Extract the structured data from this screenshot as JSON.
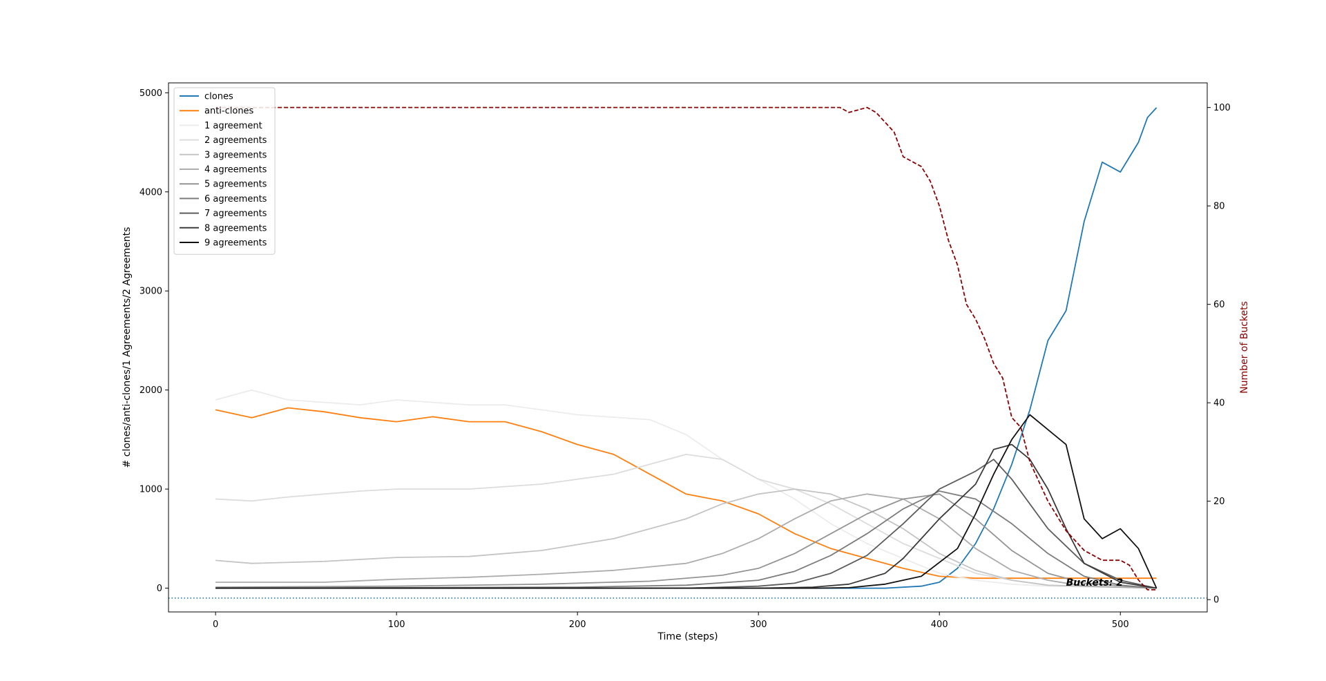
{
  "chart_data": {
    "type": "line",
    "xlabel": "Time (steps)",
    "ylabel": "# clones/anti-clones/1 Agreements/2 Agreements",
    "y2label": "Number of Buckets",
    "xlim": [
      -26,
      548
    ],
    "ylim": [
      -240,
      5100
    ],
    "y2lim": [
      -2.5,
      105
    ],
    "xticks": [
      0,
      100,
      200,
      300,
      400,
      500
    ],
    "yticks": [
      0,
      1000,
      2000,
      3000,
      4000,
      5000
    ],
    "y2ticks": [
      0,
      20,
      40,
      60,
      80,
      100
    ],
    "legend_position": "top-left",
    "grid": false,
    "annotation": {
      "text": "Buckets: 2",
      "x": 470,
      "y": 25
    },
    "baseline": {
      "y": -100,
      "style": "dotted",
      "color": "#1f77b4"
    },
    "series": [
      {
        "name": "clones",
        "color": "#1f77b4",
        "style": "solid",
        "axis": "left",
        "points": [
          [
            0,
            0
          ],
          [
            370,
            0
          ],
          [
            390,
            20
          ],
          [
            400,
            60
          ],
          [
            410,
            200
          ],
          [
            420,
            450
          ],
          [
            430,
            800
          ],
          [
            440,
            1250
          ],
          [
            450,
            1800
          ],
          [
            460,
            2500
          ],
          [
            470,
            2800
          ],
          [
            480,
            3700
          ],
          [
            490,
            4300
          ],
          [
            500,
            4200
          ],
          [
            510,
            4500
          ],
          [
            515,
            4750
          ],
          [
            520,
            4850
          ]
        ]
      },
      {
        "name": "anti-clones",
        "color": "#ff7f0e",
        "style": "solid",
        "axis": "left",
        "points": [
          [
            0,
            1800
          ],
          [
            20,
            1720
          ],
          [
            40,
            1820
          ],
          [
            60,
            1780
          ],
          [
            80,
            1720
          ],
          [
            100,
            1680
          ],
          [
            120,
            1730
          ],
          [
            140,
            1680
          ],
          [
            160,
            1680
          ],
          [
            180,
            1580
          ],
          [
            200,
            1450
          ],
          [
            220,
            1350
          ],
          [
            240,
            1150
          ],
          [
            260,
            950
          ],
          [
            280,
            880
          ],
          [
            300,
            750
          ],
          [
            320,
            550
          ],
          [
            340,
            400
          ],
          [
            360,
            300
          ],
          [
            380,
            200
          ],
          [
            400,
            120
          ],
          [
            420,
            100
          ],
          [
            520,
            100
          ]
        ]
      },
      {
        "name": "1 agreement",
        "color": "#ececec",
        "style": "solid",
        "axis": "left",
        "points": [
          [
            0,
            1900
          ],
          [
            20,
            2000
          ],
          [
            40,
            1900
          ],
          [
            80,
            1850
          ],
          [
            100,
            1900
          ],
          [
            140,
            1850
          ],
          [
            160,
            1850
          ],
          [
            200,
            1750
          ],
          [
            240,
            1700
          ],
          [
            260,
            1550
          ],
          [
            280,
            1300
          ],
          [
            300,
            1100
          ],
          [
            320,
            900
          ],
          [
            340,
            650
          ],
          [
            360,
            450
          ],
          [
            380,
            300
          ],
          [
            400,
            150
          ],
          [
            420,
            80
          ],
          [
            440,
            40
          ],
          [
            460,
            20
          ],
          [
            520,
            0
          ]
        ]
      },
      {
        "name": "2 agreements",
        "color": "#dcdcdc",
        "style": "solid",
        "axis": "left",
        "points": [
          [
            0,
            900
          ],
          [
            20,
            880
          ],
          [
            40,
            920
          ],
          [
            80,
            980
          ],
          [
            100,
            1000
          ],
          [
            140,
            1000
          ],
          [
            180,
            1050
          ],
          [
            220,
            1150
          ],
          [
            260,
            1350
          ],
          [
            280,
            1300
          ],
          [
            300,
            1100
          ],
          [
            320,
            1000
          ],
          [
            340,
            850
          ],
          [
            360,
            650
          ],
          [
            380,
            450
          ],
          [
            400,
            300
          ],
          [
            420,
            150
          ],
          [
            440,
            80
          ],
          [
            460,
            30
          ],
          [
            520,
            0
          ]
        ]
      },
      {
        "name": "3 agreements",
        "color": "#c4c4c4",
        "style": "solid",
        "axis": "left",
        "points": [
          [
            0,
            280
          ],
          [
            20,
            250
          ],
          [
            60,
            270
          ],
          [
            100,
            310
          ],
          [
            140,
            320
          ],
          [
            180,
            380
          ],
          [
            220,
            500
          ],
          [
            260,
            700
          ],
          [
            280,
            850
          ],
          [
            300,
            950
          ],
          [
            320,
            1000
          ],
          [
            340,
            950
          ],
          [
            360,
            800
          ],
          [
            380,
            600
          ],
          [
            400,
            350
          ],
          [
            420,
            180
          ],
          [
            440,
            80
          ],
          [
            460,
            30
          ],
          [
            520,
            0
          ]
        ]
      },
      {
        "name": "4 agreements",
        "color": "#acacac",
        "style": "solid",
        "axis": "left",
        "points": [
          [
            0,
            60
          ],
          [
            60,
            60
          ],
          [
            100,
            90
          ],
          [
            140,
            110
          ],
          [
            180,
            140
          ],
          [
            220,
            180
          ],
          [
            260,
            250
          ],
          [
            280,
            350
          ],
          [
            300,
            500
          ],
          [
            320,
            700
          ],
          [
            340,
            880
          ],
          [
            360,
            950
          ],
          [
            380,
            900
          ],
          [
            400,
            700
          ],
          [
            420,
            400
          ],
          [
            440,
            180
          ],
          [
            460,
            80
          ],
          [
            480,
            20
          ],
          [
            520,
            0
          ]
        ]
      },
      {
        "name": "5 agreements",
        "color": "#949494",
        "style": "solid",
        "axis": "left",
        "points": [
          [
            0,
            10
          ],
          [
            100,
            20
          ],
          [
            180,
            40
          ],
          [
            240,
            70
          ],
          [
            280,
            130
          ],
          [
            300,
            200
          ],
          [
            320,
            350
          ],
          [
            340,
            550
          ],
          [
            360,
            750
          ],
          [
            380,
            900
          ],
          [
            400,
            950
          ],
          [
            420,
            700
          ],
          [
            440,
            380
          ],
          [
            460,
            150
          ],
          [
            480,
            50
          ],
          [
            520,
            0
          ]
        ]
      },
      {
        "name": "6 agreements",
        "color": "#7c7c7c",
        "style": "solid",
        "axis": "left",
        "points": [
          [
            0,
            0
          ],
          [
            200,
            10
          ],
          [
            260,
            30
          ],
          [
            300,
            80
          ],
          [
            320,
            170
          ],
          [
            340,
            330
          ],
          [
            360,
            550
          ],
          [
            380,
            800
          ],
          [
            400,
            980
          ],
          [
            420,
            900
          ],
          [
            440,
            650
          ],
          [
            460,
            350
          ],
          [
            480,
            120
          ],
          [
            500,
            30
          ],
          [
            520,
            0
          ]
        ]
      },
      {
        "name": "7 agreements",
        "color": "#5c5c5c",
        "style": "solid",
        "axis": "left",
        "points": [
          [
            0,
            0
          ],
          [
            260,
            0
          ],
          [
            300,
            20
          ],
          [
            320,
            50
          ],
          [
            340,
            150
          ],
          [
            360,
            330
          ],
          [
            380,
            650
          ],
          [
            400,
            1000
          ],
          [
            420,
            1180
          ],
          [
            430,
            1300
          ],
          [
            440,
            1100
          ],
          [
            460,
            600
          ],
          [
            480,
            250
          ],
          [
            500,
            80
          ],
          [
            520,
            0
          ]
        ]
      },
      {
        "name": "8 agreements",
        "color": "#3a3a3a",
        "style": "solid",
        "axis": "left",
        "points": [
          [
            0,
            0
          ],
          [
            300,
            0
          ],
          [
            330,
            10
          ],
          [
            350,
            40
          ],
          [
            370,
            150
          ],
          [
            380,
            300
          ],
          [
            400,
            700
          ],
          [
            420,
            1050
          ],
          [
            430,
            1400
          ],
          [
            440,
            1450
          ],
          [
            450,
            1300
          ],
          [
            460,
            1000
          ],
          [
            470,
            600
          ],
          [
            480,
            250
          ],
          [
            500,
            60
          ],
          [
            520,
            0
          ]
        ]
      },
      {
        "name": "9 agreements",
        "color": "#111111",
        "style": "solid",
        "axis": "left",
        "points": [
          [
            0,
            0
          ],
          [
            330,
            0
          ],
          [
            350,
            5
          ],
          [
            370,
            40
          ],
          [
            390,
            120
          ],
          [
            410,
            400
          ],
          [
            420,
            750
          ],
          [
            430,
            1150
          ],
          [
            440,
            1500
          ],
          [
            450,
            1750
          ],
          [
            460,
            1600
          ],
          [
            470,
            1450
          ],
          [
            480,
            700
          ],
          [
            490,
            500
          ],
          [
            500,
            600
          ],
          [
            510,
            400
          ],
          [
            520,
            0
          ]
        ]
      },
      {
        "name": "",
        "color": "#8b0000",
        "style": "dashed",
        "axis": "right",
        "points": [
          [
            0,
            100
          ],
          [
            345,
            100
          ],
          [
            350,
            99
          ],
          [
            360,
            100
          ],
          [
            365,
            99
          ],
          [
            370,
            97
          ],
          [
            375,
            95
          ],
          [
            380,
            90
          ],
          [
            390,
            88
          ],
          [
            395,
            85
          ],
          [
            400,
            80
          ],
          [
            405,
            73
          ],
          [
            410,
            68
          ],
          [
            415,
            60
          ],
          [
            420,
            57
          ],
          [
            425,
            53
          ],
          [
            430,
            48
          ],
          [
            435,
            45
          ],
          [
            440,
            37
          ],
          [
            445,
            35
          ],
          [
            450,
            28
          ],
          [
            460,
            20
          ],
          [
            470,
            14
          ],
          [
            480,
            10
          ],
          [
            490,
            8
          ],
          [
            500,
            8
          ],
          [
            505,
            7
          ],
          [
            510,
            4
          ],
          [
            515,
            2
          ],
          [
            520,
            2
          ]
        ]
      }
    ]
  }
}
